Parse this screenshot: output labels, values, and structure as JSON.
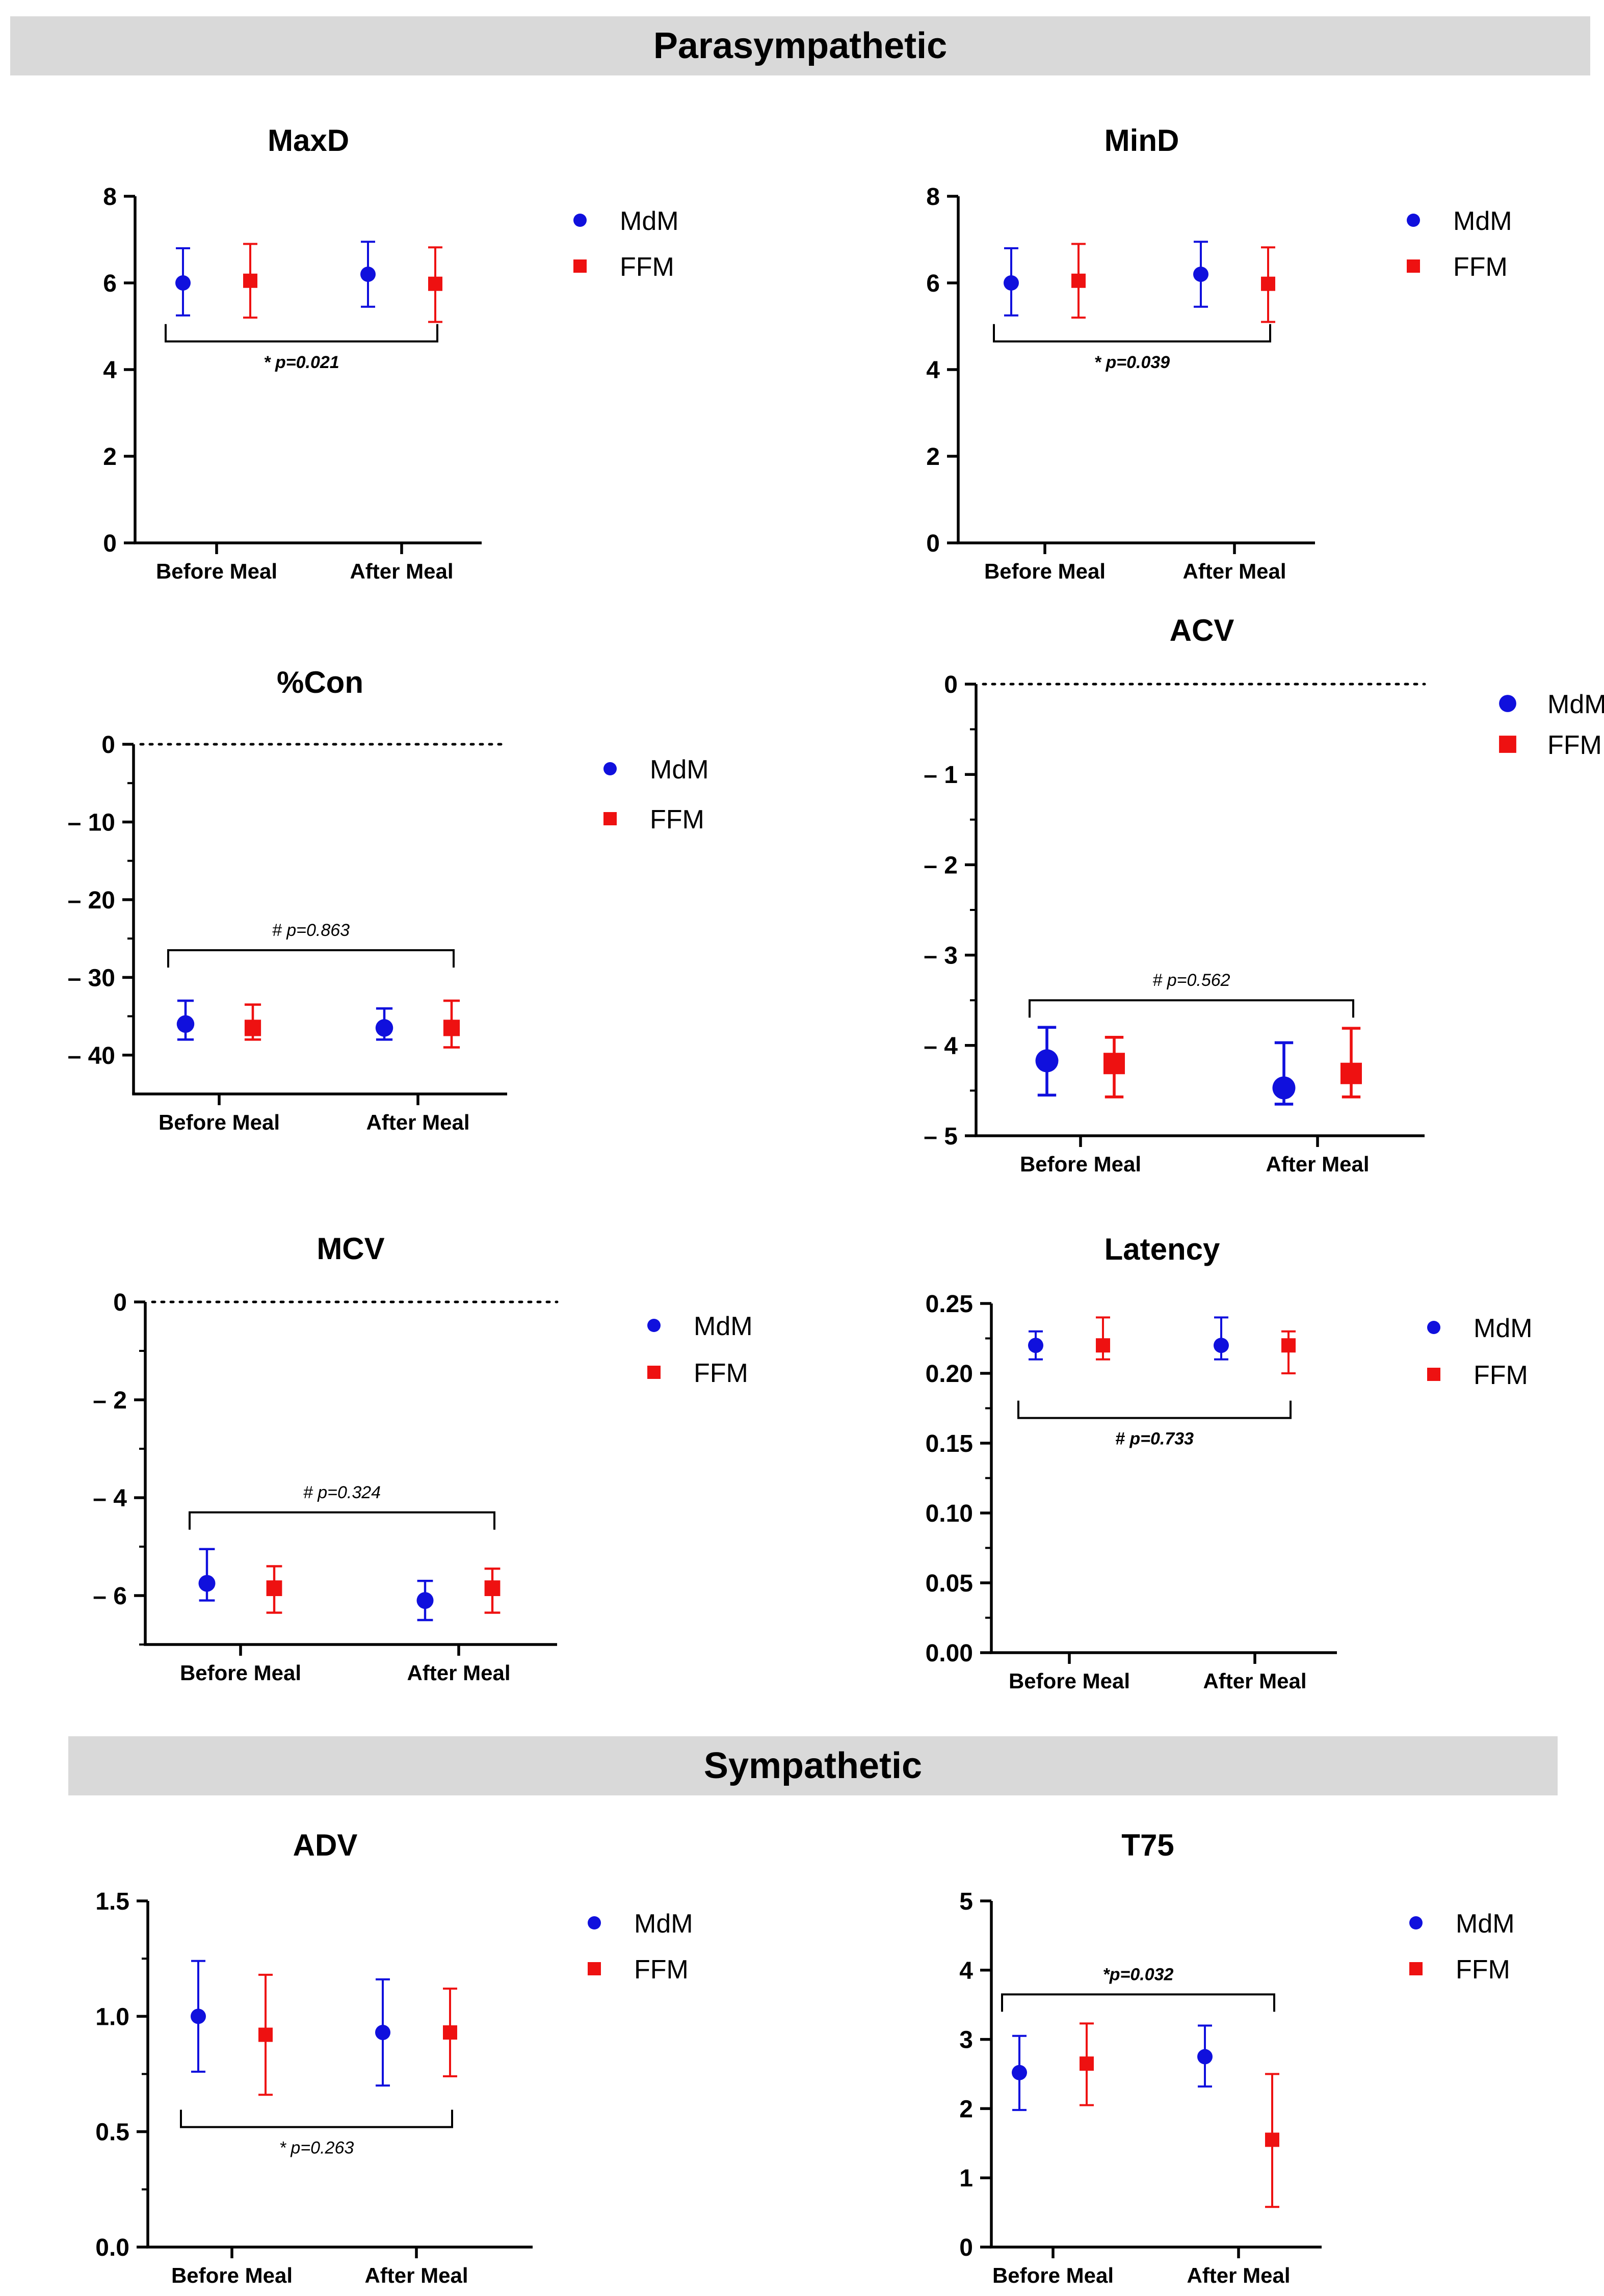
{
  "sections": {
    "parasympathetic": "Parasympathetic",
    "sympathetic": "Sympathetic"
  },
  "colors": {
    "mdm": "#1010dd",
    "ffm": "#ee1111",
    "axis": "#000000",
    "band": "#d9d9d9"
  },
  "legend": {
    "mdm": "MdM",
    "ffm": "FFM"
  },
  "chart_data": [
    {
      "id": "maxd",
      "type": "scatter",
      "title": "MaxD",
      "categories": [
        "Before Meal",
        "After Meal"
      ],
      "ylim": [
        0,
        8
      ],
      "yticks": [
        0,
        2,
        4,
        6,
        8
      ],
      "ytick_labels": [
        "0",
        "2",
        "4",
        "6",
        "8"
      ],
      "minor_ticks": [],
      "zero_line": false,
      "marker_scale": 1,
      "series": [
        {
          "name": "MdM",
          "values": [
            6.0,
            6.2
          ],
          "err_low": [
            5.25,
            5.45
          ],
          "err_high": [
            6.8,
            6.95
          ]
        },
        {
          "name": "FFM",
          "values": [
            6.05,
            5.98
          ],
          "err_low": [
            5.2,
            5.1
          ],
          "err_high": [
            6.9,
            6.82
          ]
        }
      ],
      "annotation": {
        "text": "* p=0.021",
        "style": "bold-italic",
        "bracket_y": 4.65,
        "direction": "up",
        "text_pos": "below"
      }
    },
    {
      "id": "mind",
      "type": "scatter",
      "title": "MinD",
      "categories": [
        "Before Meal",
        "After Meal"
      ],
      "ylim": [
        0,
        8
      ],
      "yticks": [
        0,
        2,
        4,
        6,
        8
      ],
      "ytick_labels": [
        "0",
        "2",
        "4",
        "6",
        "8"
      ],
      "minor_ticks": [],
      "zero_line": false,
      "marker_scale": 1,
      "series": [
        {
          "name": "MdM",
          "values": [
            6.0,
            6.2
          ],
          "err_low": [
            5.25,
            5.45
          ],
          "err_high": [
            6.8,
            6.95
          ]
        },
        {
          "name": "FFM",
          "values": [
            6.05,
            5.98
          ],
          "err_low": [
            5.2,
            5.1
          ],
          "err_high": [
            6.9,
            6.82
          ]
        }
      ],
      "annotation": {
        "text": "* p=0.039",
        "style": "bold-italic",
        "bracket_y": 4.65,
        "direction": "up",
        "text_pos": "below"
      }
    },
    {
      "id": "con",
      "type": "scatter",
      "title": "%Con",
      "categories": [
        "Before Meal",
        "After Meal"
      ],
      "ylim": [
        -45,
        0
      ],
      "yticks": [
        0,
        -10,
        -20,
        -30,
        -40
      ],
      "ytick_labels": [
        "0",
        "– 10",
        "– 20",
        "– 30",
        "– 40"
      ],
      "minor_ticks": [
        -5,
        -15,
        -25,
        -35
      ],
      "zero_line": true,
      "marker_scale": 1.15,
      "series": [
        {
          "name": "MdM",
          "values": [
            -36,
            -36.5
          ],
          "err_low": [
            -38,
            -38
          ],
          "err_high": [
            -33,
            -34
          ]
        },
        {
          "name": "FFM",
          "values": [
            -36.5,
            -36.5
          ],
          "err_low": [
            -38,
            -39
          ],
          "err_high": [
            -33.5,
            -33
          ]
        }
      ],
      "annotation": {
        "text": "# p=0.863",
        "style": "italic",
        "bracket_y": -26.5,
        "direction": "down",
        "text_pos": "above"
      }
    },
    {
      "id": "acv",
      "type": "scatter",
      "title": "ACV",
      "categories": [
        "Before Meal",
        "After Meal"
      ],
      "ylim": [
        -5,
        0
      ],
      "yticks": [
        0,
        -1,
        -2,
        -3,
        -4,
        -5
      ],
      "ytick_labels": [
        "0",
        "– 1",
        "– 2",
        "– 3",
        "– 4",
        "– 5"
      ],
      "minor_ticks": [
        -0.5,
        -1.5,
        -2.5,
        -3.5,
        -4.5
      ],
      "zero_line": true,
      "marker_scale": 1.5,
      "series": [
        {
          "name": "MdM",
          "values": [
            -4.17,
            -4.47
          ],
          "err_low": [
            -4.55,
            -4.65
          ],
          "err_high": [
            -3.8,
            -3.97
          ]
        },
        {
          "name": "FFM",
          "values": [
            -4.2,
            -4.31
          ],
          "err_low": [
            -4.57,
            -4.57
          ],
          "err_high": [
            -3.91,
            -3.81
          ]
        }
      ],
      "annotation": {
        "text": "# p=0.562",
        "style": "italic",
        "bracket_y": -3.5,
        "direction": "down",
        "text_pos": "above"
      }
    },
    {
      "id": "mcv",
      "type": "scatter",
      "title": "MCV",
      "categories": [
        "Before Meal",
        "After Meal"
      ],
      "ylim": [
        -7,
        0
      ],
      "yticks": [
        0,
        -2,
        -4,
        -6
      ],
      "ytick_labels": [
        "0",
        "– 2",
        "– 4",
        "– 6"
      ],
      "minor_ticks": [
        -1,
        -3,
        -5,
        -7
      ],
      "zero_line": true,
      "marker_scale": 1.1,
      "series": [
        {
          "name": "MdM",
          "values": [
            -5.75,
            -6.1
          ],
          "err_low": [
            -6.1,
            -6.5
          ],
          "err_high": [
            -5.05,
            -5.7
          ]
        },
        {
          "name": "FFM",
          "values": [
            -5.85,
            -5.85
          ],
          "err_low": [
            -6.35,
            -6.35
          ],
          "err_high": [
            -5.4,
            -5.45
          ]
        }
      ],
      "annotation": {
        "text": "# p=0.324",
        "style": "italic",
        "bracket_y": -4.3,
        "direction": "down",
        "text_pos": "above"
      }
    },
    {
      "id": "latency",
      "type": "scatter",
      "title": "Latency",
      "categories": [
        "Before Meal",
        "After Meal"
      ],
      "ylim": [
        0,
        0.25
      ],
      "yticks": [
        0,
        0.05,
        0.1,
        0.15,
        0.2,
        0.25
      ],
      "ytick_labels": [
        "0.00",
        "0.05",
        "0.10",
        "0.15",
        "0.20",
        "0.25"
      ],
      "minor_ticks": [
        0.025,
        0.075,
        0.125,
        0.175,
        0.225
      ],
      "zero_line": false,
      "marker_scale": 1,
      "series": [
        {
          "name": "MdM",
          "values": [
            0.22,
            0.22
          ],
          "err_low": [
            0.21,
            0.21
          ],
          "err_high": [
            0.23,
            0.24
          ]
        },
        {
          "name": "FFM",
          "values": [
            0.22,
            0.22
          ],
          "err_low": [
            0.21,
            0.2
          ],
          "err_high": [
            0.24,
            0.23
          ]
        }
      ],
      "annotation": {
        "text": "# p=0.733",
        "style": "bold-italic",
        "bracket_y": 0.168,
        "direction": "up",
        "text_pos": "below"
      }
    },
    {
      "id": "adv",
      "type": "scatter",
      "title": "ADV",
      "categories": [
        "Before Meal",
        "After Meal"
      ],
      "ylim": [
        0,
        1.5
      ],
      "yticks": [
        0,
        0.5,
        1.0,
        1.5
      ],
      "ytick_labels": [
        "0.0",
        "0.5",
        "1.0",
        "1.5"
      ],
      "minor_ticks": [
        0.25,
        0.75,
        1.25
      ],
      "zero_line": false,
      "marker_scale": 1,
      "series": [
        {
          "name": "MdM",
          "values": [
            1.0,
            0.93
          ],
          "err_low": [
            0.76,
            0.7
          ],
          "err_high": [
            1.24,
            1.16
          ]
        },
        {
          "name": "FFM",
          "values": [
            0.92,
            0.93
          ],
          "err_low": [
            0.66,
            0.74
          ],
          "err_high": [
            1.18,
            1.12
          ]
        }
      ],
      "annotation": {
        "text": "* p=0.263",
        "style": "italic",
        "bracket_y": 0.52,
        "direction": "up",
        "text_pos": "below"
      }
    },
    {
      "id": "t75",
      "type": "scatter",
      "title": "T75",
      "categories": [
        "Before Meal",
        "After Meal"
      ],
      "ylim": [
        0,
        5
      ],
      "yticks": [
        0,
        1,
        2,
        3,
        4,
        5
      ],
      "ytick_labels": [
        "0",
        "1",
        "2",
        "3",
        "4",
        "5"
      ],
      "minor_ticks": [],
      "zero_line": false,
      "marker_scale": 1,
      "series": [
        {
          "name": "MdM",
          "values": [
            2.52,
            2.75
          ],
          "err_low": [
            1.98,
            2.32
          ],
          "err_high": [
            3.05,
            3.2
          ]
        },
        {
          "name": "FFM",
          "values": [
            2.65,
            1.55
          ],
          "err_low": [
            2.05,
            0.58
          ],
          "err_high": [
            3.23,
            2.5
          ]
        }
      ],
      "annotation": {
        "text": "*p=0.032",
        "style": "bold-italic",
        "bracket_y": 3.65,
        "direction": "down",
        "text_pos": "above"
      }
    }
  ]
}
